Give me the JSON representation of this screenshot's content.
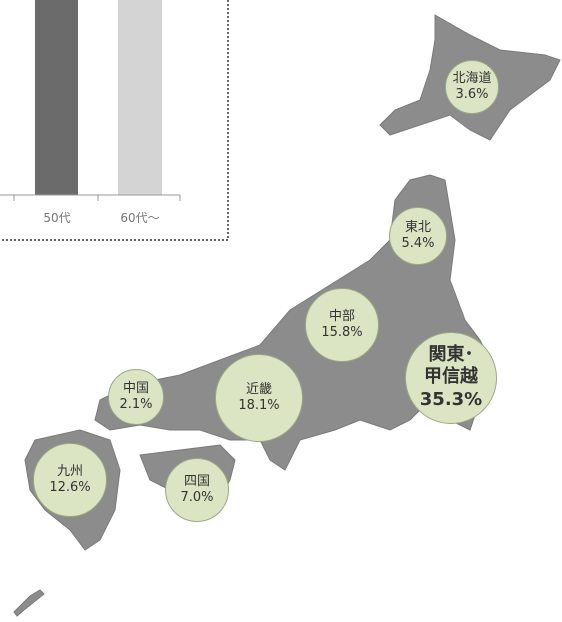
{
  "chart": {
    "categories": [
      "50代",
      "60代～"
    ]
  },
  "regions": [
    {
      "name": "北海道",
      "label": "3.6%"
    },
    {
      "name": "東北",
      "label": "5.4%"
    },
    {
      "name": "中部",
      "label": "15.8%"
    },
    {
      "name": "関東･甲信越",
      "label": "35.3%"
    },
    {
      "name": "近畿",
      "label": "18.1%"
    },
    {
      "name": "中国",
      "label": "2.1%"
    },
    {
      "name": "九州",
      "label": "12.6%"
    },
    {
      "name": "四国",
      "label": "7.0%"
    }
  ]
}
